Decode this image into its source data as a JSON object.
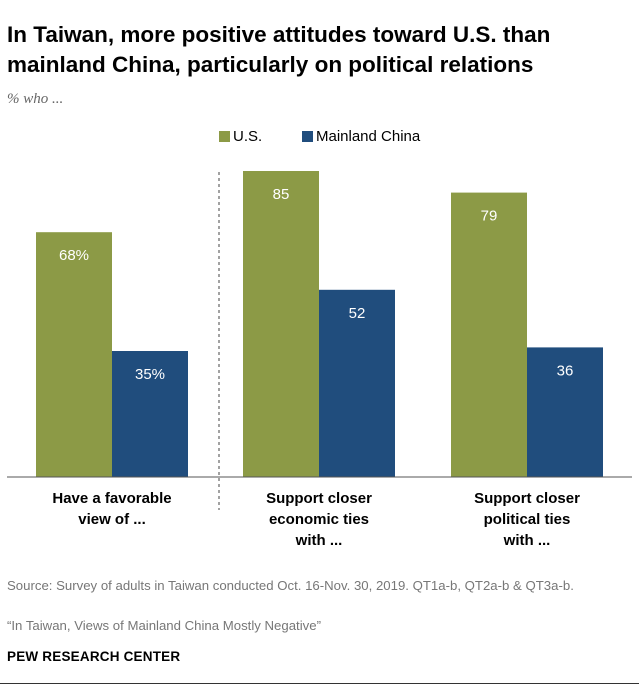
{
  "header": {
    "title": "In Taiwan, more positive attitudes toward U.S. than mainland China, particularly on political relations",
    "subtitle": "% who ..."
  },
  "chart_data": {
    "type": "bar",
    "title": "In Taiwan, more positive attitudes toward U.S. than mainland China, particularly on political relations",
    "ylabel": "% who ...",
    "ylim": [
      0,
      100
    ],
    "grid": false,
    "legend_position": "top",
    "categories": [
      [
        "Have a favorable",
        "view of ..."
      ],
      [
        "Support closer",
        "economic ties",
        "with ..."
      ],
      [
        "Support closer",
        "political ties",
        "with ..."
      ]
    ],
    "series": [
      {
        "name": "U.S.",
        "color": "#8c9a46",
        "values": [
          68,
          85,
          79
        ],
        "labels": [
          "68%",
          "85",
          "79"
        ]
      },
      {
        "name": "Mainland China",
        "color": "#204d7d",
        "values": [
          35,
          52,
          36
        ],
        "labels": [
          "35%",
          "52",
          "36"
        ]
      }
    ]
  },
  "footer": {
    "source": "Source: Survey of adults in Taiwan conducted Oct. 16-Nov. 30, 2019. QT1a-b, QT2a-b & QT3a-b.",
    "report": "“In Taiwan, Views of Mainland China Mostly Negative”",
    "brand": "PEW RESEARCH CENTER"
  }
}
